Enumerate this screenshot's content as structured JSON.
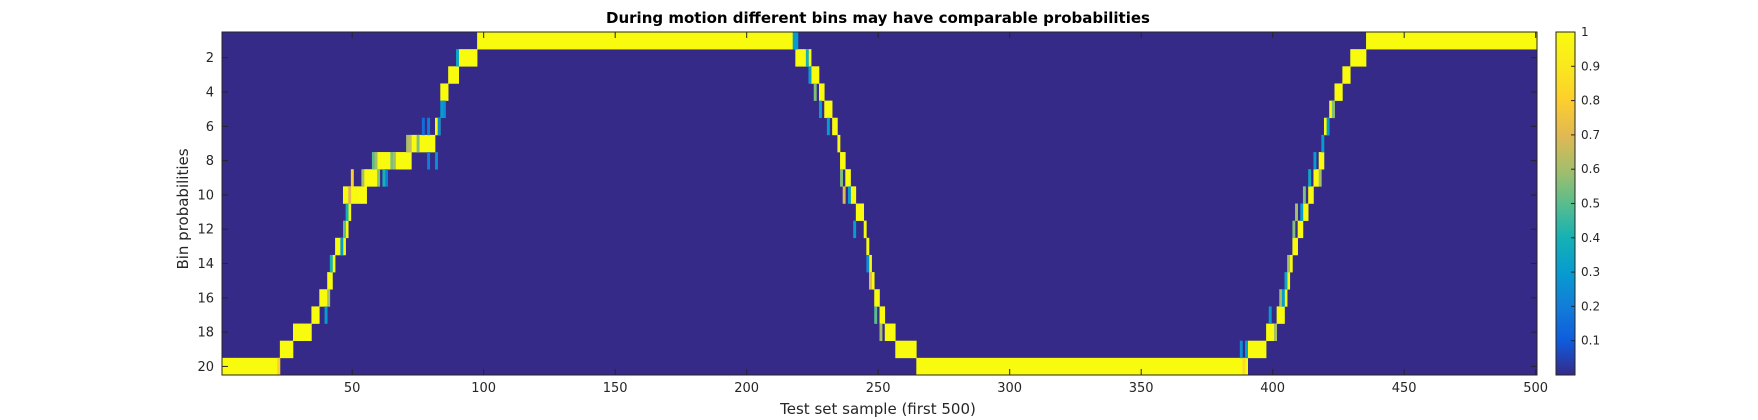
{
  "chart_data": {
    "type": "heatmap",
    "title": "During motion different bins may have comparable probabilities",
    "xlabel": "Test set sample (first 500)",
    "ylabel": "Bin probabilities",
    "xlim": [
      0.5,
      500.5
    ],
    "ylim": [
      0.5,
      20.5
    ],
    "x_ticks": [
      50,
      100,
      150,
      200,
      250,
      300,
      350,
      400,
      450,
      500
    ],
    "y_ticks": [
      2,
      4,
      6,
      8,
      10,
      12,
      14,
      16,
      18,
      20
    ],
    "y_direction": "reverse",
    "colormap": "parula",
    "colorbar": {
      "min": 0,
      "max": 1,
      "ticks": [
        0.1,
        0.2,
        0.3,
        0.4,
        0.5,
        0.6,
        0.7,
        0.8,
        0.9,
        1
      ],
      "tick_labels": [
        "0.1",
        "0.2",
        "0.3",
        "0.4",
        "0.5",
        "0.6",
        "0.7",
        "0.8",
        "0.9",
        "1"
      ]
    },
    "background_value": 0,
    "dominant_bin_segments": [
      {
        "x_start": 1,
        "x_end": 22,
        "bin": 20
      },
      {
        "x_start": 23,
        "x_end": 27,
        "bin": 19
      },
      {
        "x_start": 28,
        "x_end": 34,
        "bin": 18
      },
      {
        "x_start": 35,
        "x_end": 37,
        "bin": 17
      },
      {
        "x_start": 38,
        "x_end": 40,
        "bin": 16
      },
      {
        "x_start": 41,
        "x_end": 42,
        "bin": 15
      },
      {
        "x_start": 43,
        "x_end": 43,
        "bin": 14
      },
      {
        "x_start": 44,
        "x_end": 47,
        "bin": 13
      },
      {
        "x_start": 48,
        "x_end": 48,
        "bin": 12
      },
      {
        "x_start": 49,
        "x_end": 49,
        "bin": 11
      },
      {
        "x_start": 47,
        "x_end": 51,
        "bin": 10
      },
      {
        "x_start": 52,
        "x_end": 55,
        "bin": 10
      },
      {
        "x_start": 55,
        "x_end": 59,
        "bin": 9
      },
      {
        "x_start": 60,
        "x_end": 64,
        "bin": 8
      },
      {
        "x_start": 66,
        "x_end": 72,
        "bin": 8
      },
      {
        "x_start": 73,
        "x_end": 81,
        "bin": 7
      },
      {
        "x_start": 82,
        "x_end": 83,
        "bin": 6
      },
      {
        "x_start": 84,
        "x_end": 86,
        "bin": 4
      },
      {
        "x_start": 87,
        "x_end": 90,
        "bin": 3
      },
      {
        "x_start": 91,
        "x_end": 97,
        "bin": 2
      },
      {
        "x_start": 98,
        "x_end": 218,
        "bin": 1
      },
      {
        "x_start": 219,
        "x_end": 224,
        "bin": 2
      },
      {
        "x_start": 225,
        "x_end": 227,
        "bin": 3
      },
      {
        "x_start": 228,
        "x_end": 229,
        "bin": 4
      },
      {
        "x_start": 230,
        "x_end": 232,
        "bin": 5
      },
      {
        "x_start": 233,
        "x_end": 234,
        "bin": 6
      },
      {
        "x_start": 235,
        "x_end": 235,
        "bin": 7
      },
      {
        "x_start": 236,
        "x_end": 237,
        "bin": 8
      },
      {
        "x_start": 238,
        "x_end": 239,
        "bin": 9
      },
      {
        "x_start": 240,
        "x_end": 241,
        "bin": 10
      },
      {
        "x_start": 242,
        "x_end": 244,
        "bin": 11
      },
      {
        "x_start": 245,
        "x_end": 245,
        "bin": 12
      },
      {
        "x_start": 246,
        "x_end": 246,
        "bin": 13
      },
      {
        "x_start": 247,
        "x_end": 247,
        "bin": 14
      },
      {
        "x_start": 248,
        "x_end": 248,
        "bin": 15
      },
      {
        "x_start": 249,
        "x_end": 250,
        "bin": 16
      },
      {
        "x_start": 251,
        "x_end": 252,
        "bin": 17
      },
      {
        "x_start": 253,
        "x_end": 256,
        "bin": 18
      },
      {
        "x_start": 257,
        "x_end": 264,
        "bin": 19
      },
      {
        "x_start": 265,
        "x_end": 390,
        "bin": 20
      },
      {
        "x_start": 391,
        "x_end": 397,
        "bin": 19
      },
      {
        "x_start": 398,
        "x_end": 401,
        "bin": 18
      },
      {
        "x_start": 402,
        "x_end": 404,
        "bin": 17
      },
      {
        "x_start": 405,
        "x_end": 405,
        "bin": 16
      },
      {
        "x_start": 406,
        "x_end": 406,
        "bin": 15
      },
      {
        "x_start": 407,
        "x_end": 407,
        "bin": 14
      },
      {
        "x_start": 408,
        "x_end": 409,
        "bin": 13
      },
      {
        "x_start": 410,
        "x_end": 411,
        "bin": 12
      },
      {
        "x_start": 412,
        "x_end": 413,
        "bin": 11
      },
      {
        "x_start": 414,
        "x_end": 415,
        "bin": 10
      },
      {
        "x_start": 416,
        "x_end": 417,
        "bin": 9
      },
      {
        "x_start": 418,
        "x_end": 419,
        "bin": 8
      },
      {
        "x_start": 420,
        "x_end": 421,
        "bin": 6
      },
      {
        "x_start": 422,
        "x_end": 423,
        "bin": 5
      },
      {
        "x_start": 424,
        "x_end": 426,
        "bin": 4
      },
      {
        "x_start": 427,
        "x_end": 429,
        "bin": 3
      },
      {
        "x_start": 430,
        "x_end": 435,
        "bin": 2
      },
      {
        "x_start": 436,
        "x_end": 500,
        "bin": 1
      }
    ],
    "partial_cells": [
      {
        "x": 22,
        "bin": 20,
        "value": 0.8
      },
      {
        "x": 90,
        "bin": 2,
        "value": 0.35
      },
      {
        "x": 84,
        "bin": 5,
        "value": 0.3
      },
      {
        "x": 85,
        "bin": 5,
        "value": 0.25
      },
      {
        "x": 83,
        "bin": 6,
        "value": 0.25
      },
      {
        "x": 79,
        "bin": 6,
        "value": 0.2
      },
      {
        "x": 77,
        "bin": 6,
        "value": 0.15
      },
      {
        "x": 75,
        "bin": 7,
        "value": 0.55
      },
      {
        "x": 71,
        "bin": 7,
        "value": 0.6
      },
      {
        "x": 72,
        "bin": 7,
        "value": 0.65
      },
      {
        "x": 82,
        "bin": 8,
        "value": 0.25
      },
      {
        "x": 79,
        "bin": 8,
        "value": 0.2
      },
      {
        "x": 65,
        "bin": 8,
        "value": 0.55
      },
      {
        "x": 66,
        "bin": 8,
        "value": 0.6
      },
      {
        "x": 58,
        "bin": 8,
        "value": 0.5
      },
      {
        "x": 59,
        "bin": 8,
        "value": 0.6
      },
      {
        "x": 63,
        "bin": 9,
        "value": 0.2
      },
      {
        "x": 62,
        "bin": 9,
        "value": 0.4
      },
      {
        "x": 60,
        "bin": 9,
        "value": 0.55
      },
      {
        "x": 54,
        "bin": 9,
        "value": 0.6
      },
      {
        "x": 50,
        "bin": 9,
        "value": 0.8
      },
      {
        "x": 49,
        "bin": 10,
        "value": 0.7
      },
      {
        "x": 48,
        "bin": 11,
        "value": 0.4
      },
      {
        "x": 47,
        "bin": 12,
        "value": 0.5
      },
      {
        "x": 46,
        "bin": 13,
        "value": 0.3
      },
      {
        "x": 42,
        "bin": 14,
        "value": 0.4
      },
      {
        "x": 41,
        "bin": 16,
        "value": 0.6
      },
      {
        "x": 40,
        "bin": 17,
        "value": 0.3
      },
      {
        "x": 218,
        "bin": 1,
        "value": 0.3
      },
      {
        "x": 219,
        "bin": 1,
        "value": 0.3
      },
      {
        "x": 223,
        "bin": 2,
        "value": 0.4
      },
      {
        "x": 224,
        "bin": 3,
        "value": 0.3
      },
      {
        "x": 226,
        "bin": 4,
        "value": 0.55
      },
      {
        "x": 228,
        "bin": 5,
        "value": 0.3
      },
      {
        "x": 231,
        "bin": 6,
        "value": 0.3
      },
      {
        "x": 236,
        "bin": 9,
        "value": 0.55
      },
      {
        "x": 237,
        "bin": 10,
        "value": 0.7
      },
      {
        "x": 239,
        "bin": 10,
        "value": 0.3
      },
      {
        "x": 241,
        "bin": 12,
        "value": 0.3
      },
      {
        "x": 246,
        "bin": 14,
        "value": 0.25
      },
      {
        "x": 247,
        "bin": 15,
        "value": 0.7
      },
      {
        "x": 249,
        "bin": 17,
        "value": 0.5
      },
      {
        "x": 251,
        "bin": 18,
        "value": 0.6
      },
      {
        "x": 389,
        "bin": 20,
        "value": 0.85
      },
      {
        "x": 388,
        "bin": 19,
        "value": 0.25
      },
      {
        "x": 390,
        "bin": 19,
        "value": 0.3
      },
      {
        "x": 399,
        "bin": 17,
        "value": 0.3
      },
      {
        "x": 401,
        "bin": 18,
        "value": 0.6
      },
      {
        "x": 403,
        "bin": 16,
        "value": 0.6
      },
      {
        "x": 404,
        "bin": 16,
        "value": 0.3
      },
      {
        "x": 405,
        "bin": 15,
        "value": 0.35
      },
      {
        "x": 406,
        "bin": 14,
        "value": 0.6
      },
      {
        "x": 408,
        "bin": 12,
        "value": 0.55
      },
      {
        "x": 409,
        "bin": 11,
        "value": 0.6
      },
      {
        "x": 411,
        "bin": 11,
        "value": 0.3
      },
      {
        "x": 412,
        "bin": 10,
        "value": 0.55
      },
      {
        "x": 414,
        "bin": 9,
        "value": 0.35
      },
      {
        "x": 416,
        "bin": 8,
        "value": 0.3
      },
      {
        "x": 418,
        "bin": 9,
        "value": 0.6
      },
      {
        "x": 419,
        "bin": 7,
        "value": 0.3
      },
      {
        "x": 421,
        "bin": 6,
        "value": 0.3
      },
      {
        "x": 423,
        "bin": 5,
        "value": 0.55
      }
    ]
  }
}
